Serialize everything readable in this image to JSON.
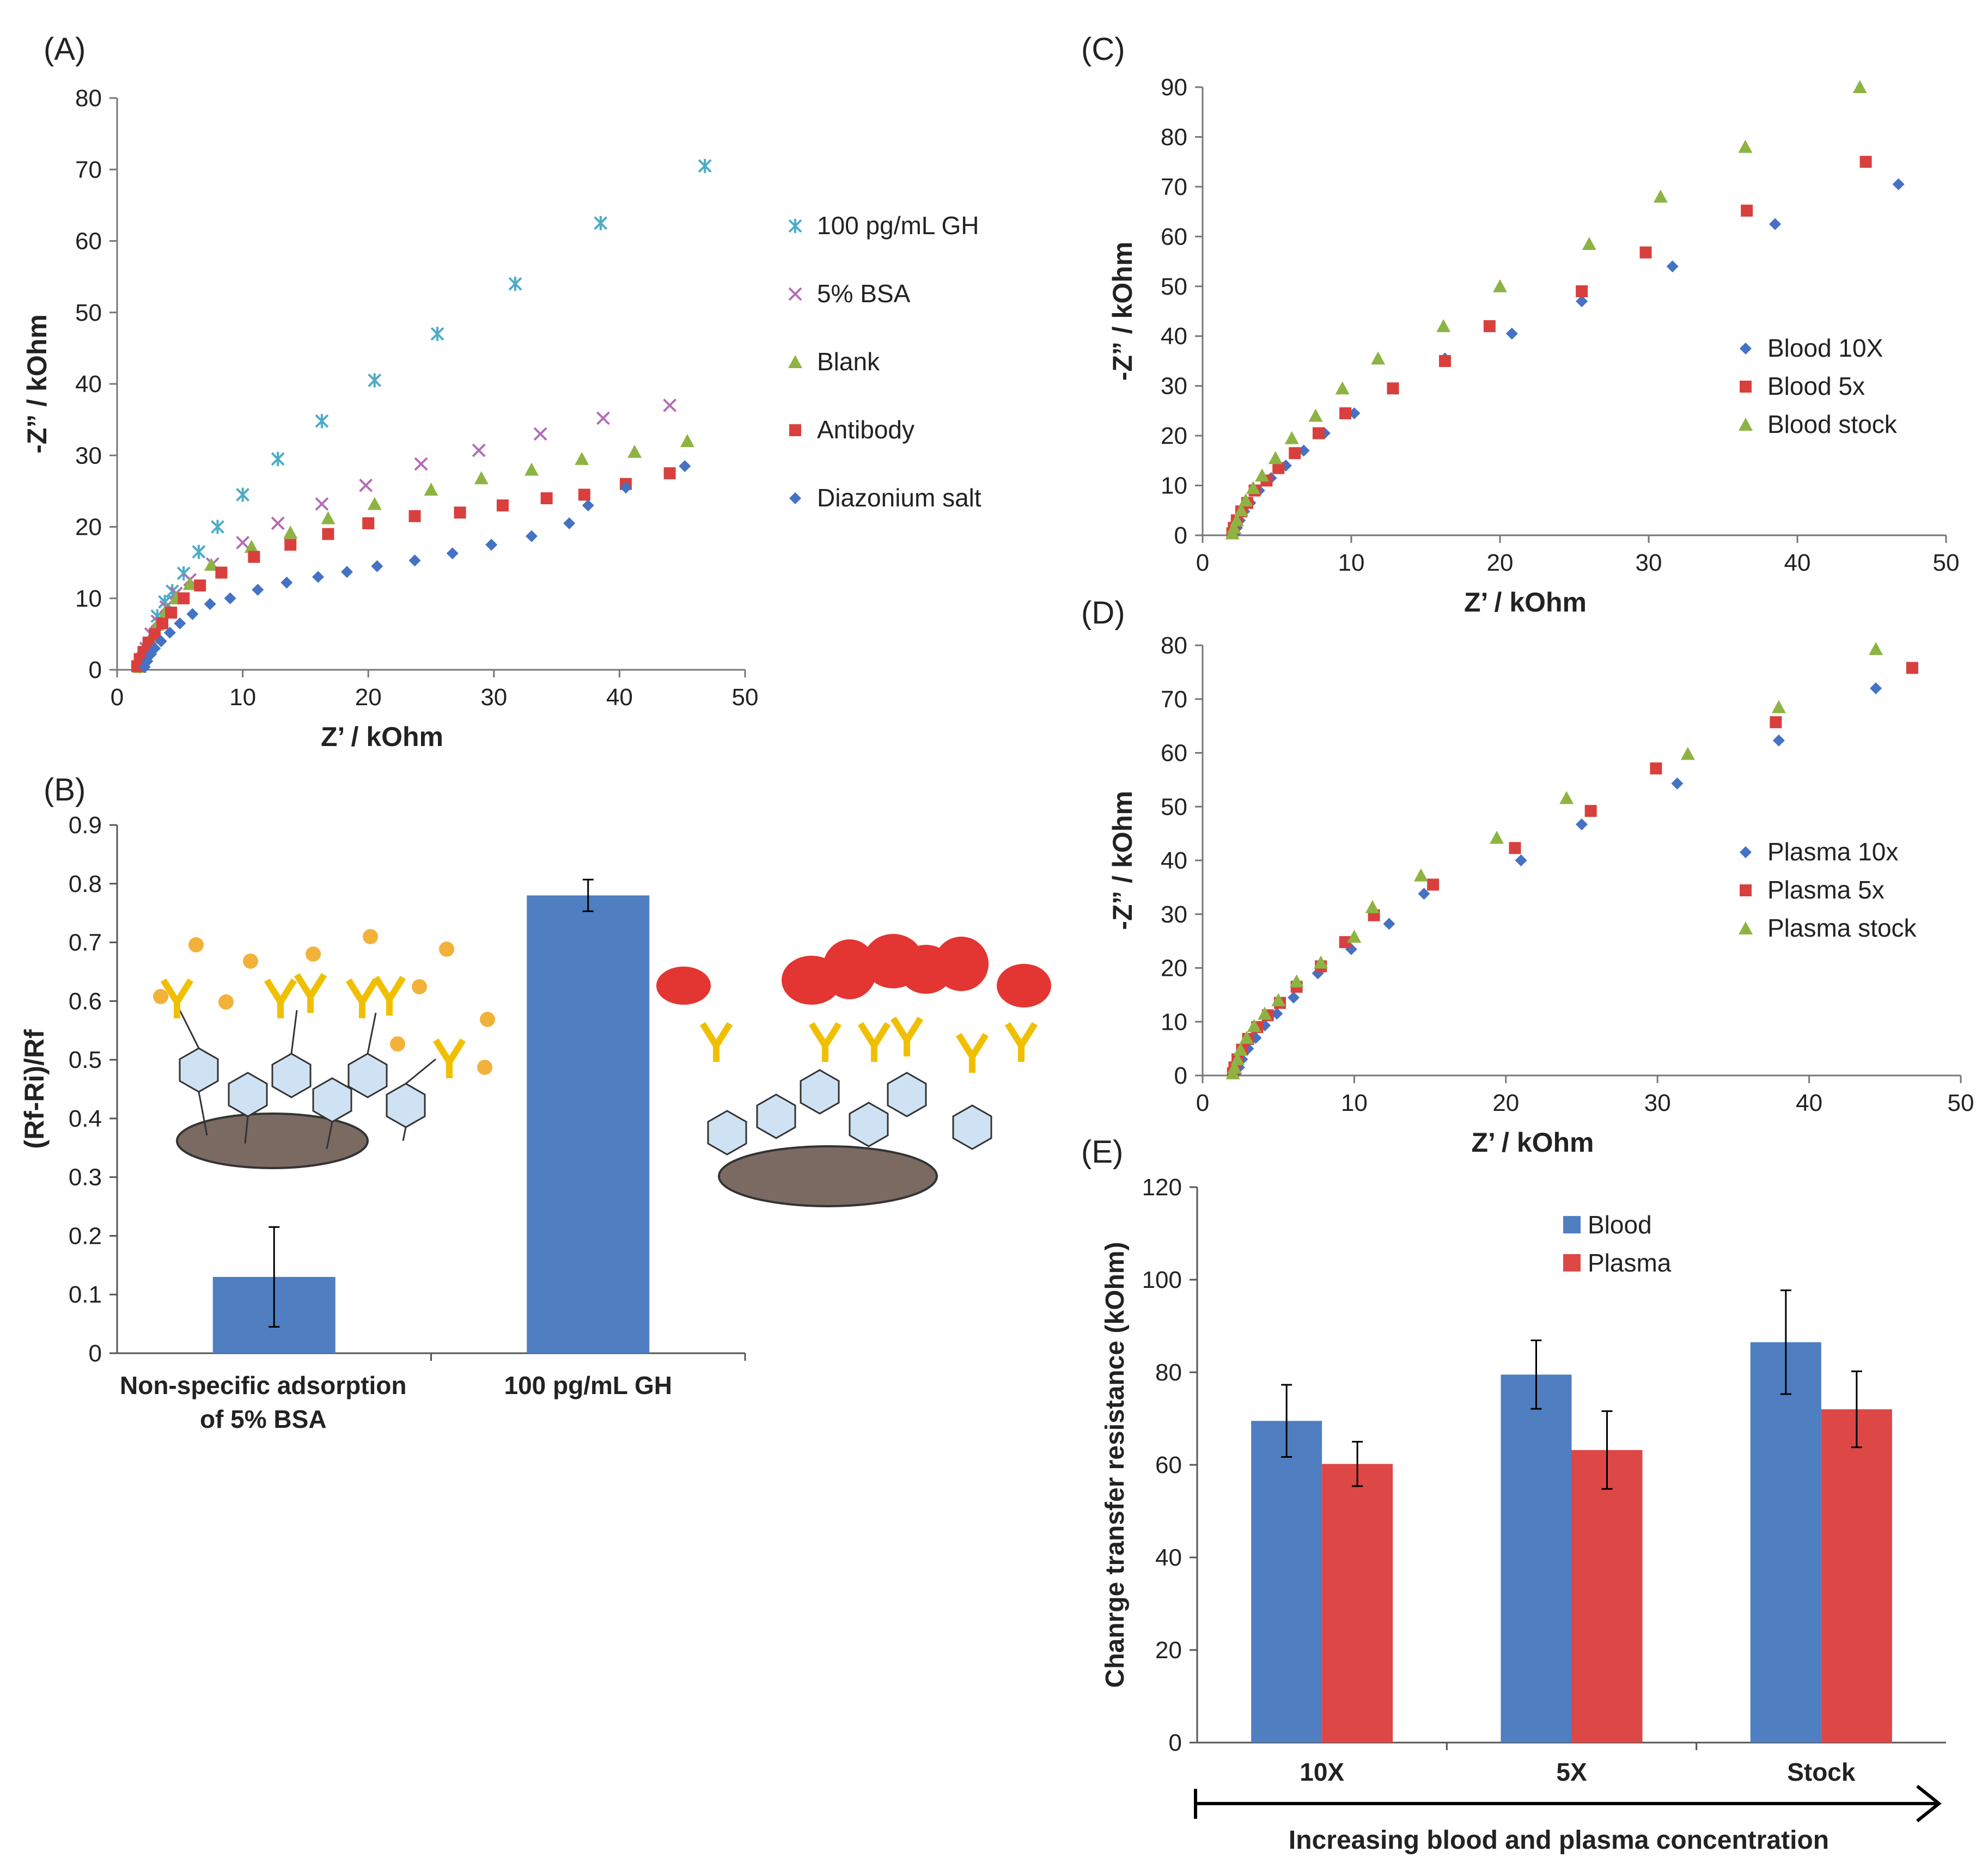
{
  "chart_data": [
    {
      "id": "A",
      "panel_label": "(A)",
      "type": "scatter",
      "xlabel": "Z’ / kOhm",
      "ylabel": "-Z” / kOhm",
      "xlim": [
        0,
        50
      ],
      "ylim": [
        0,
        80
      ],
      "xticks": [
        0,
        10,
        20,
        30,
        40,
        50
      ],
      "yticks": [
        0,
        10,
        20,
        30,
        40,
        50,
        60,
        70,
        80
      ],
      "legend_position": "right",
      "series": [
        {
          "name": "100 pg/mL GH",
          "marker": "asterisk",
          "color": "#4bacc6",
          "points": [
            [
              1.8,
              0.5
            ],
            [
              2,
              1.5
            ],
            [
              2.3,
              3
            ],
            [
              2.7,
              5
            ],
            [
              3.2,
              7.5
            ],
            [
              3.8,
              9.5
            ],
            [
              4.4,
              11
            ],
            [
              5.3,
              13.5
            ],
            [
              6.5,
              16.5
            ],
            [
              8,
              20
            ],
            [
              10,
              24.5
            ],
            [
              12.8,
              29.5
            ],
            [
              16.3,
              34.8
            ],
            [
              20.5,
              40.5
            ],
            [
              25.5,
              47
            ],
            [
              31.7,
              54
            ],
            [
              38.5,
              62.5
            ],
            [
              46.8,
              70.5
            ]
          ]
        },
        {
          "name": "5% BSA",
          "marker": "cross",
          "color": "#b36cb6",
          "points": [
            [
              1.8,
              0.5
            ],
            [
              2,
              1.5
            ],
            [
              2.3,
              3
            ],
            [
              2.7,
              5
            ],
            [
              3.2,
              6.8
            ],
            [
              3.9,
              8.8
            ],
            [
              4.7,
              10.7
            ],
            [
              5.8,
              12.6
            ],
            [
              7.6,
              14.8
            ],
            [
              10,
              17.8
            ],
            [
              12.8,
              20.5
            ],
            [
              16.3,
              23.2
            ],
            [
              19.8,
              25.8
            ],
            [
              24.2,
              28.8
            ],
            [
              28.8,
              30.7
            ],
            [
              33.7,
              33
            ],
            [
              38.7,
              35.2
            ],
            [
              44,
              37
            ]
          ]
        },
        {
          "name": "Blank",
          "marker": "triangle",
          "color": "#8db442",
          "points": [
            [
              1.8,
              0.4
            ],
            [
              2,
              1.4
            ],
            [
              2.3,
              2.8
            ],
            [
              2.7,
              4.5
            ],
            [
              3.2,
              6.3
            ],
            [
              3.9,
              8.2
            ],
            [
              4.7,
              10
            ],
            [
              5.8,
              12
            ],
            [
              7.5,
              14.7
            ],
            [
              10.7,
              17.2
            ],
            [
              13.8,
              19.2
            ],
            [
              16.8,
              21.2
            ],
            [
              20.5,
              23.2
            ],
            [
              25,
              25.2
            ],
            [
              29,
              26.8
            ],
            [
              33,
              28
            ],
            [
              37,
              29.5
            ],
            [
              41.2,
              30.5
            ],
            [
              45.4,
              32
            ]
          ]
        },
        {
          "name": "Antibody",
          "marker": "square",
          "color": "#d9403d",
          "points": [
            [
              1.6,
              0.5
            ],
            [
              1.8,
              1.5
            ],
            [
              2.1,
              2.5
            ],
            [
              2.5,
              3.8
            ],
            [
              3,
              5
            ],
            [
              3.6,
              6.5
            ],
            [
              4.3,
              8
            ],
            [
              5.3,
              10
            ],
            [
              6.6,
              11.8
            ],
            [
              8.3,
              13.6
            ],
            [
              10.9,
              15.8
            ],
            [
              13.8,
              17.5
            ],
            [
              16.8,
              19
            ],
            [
              20,
              20.5
            ],
            [
              23.7,
              21.5
            ],
            [
              27.3,
              22
            ],
            [
              30.7,
              23
            ],
            [
              34.2,
              24
            ],
            [
              37.2,
              24.5
            ],
            [
              40.5,
              26
            ],
            [
              44,
              27.5
            ]
          ]
        },
        {
          "name": "Diazonium salt",
          "marker": "diamond",
          "color": "#4472c4",
          "points": [
            [
              2.2,
              0.4
            ],
            [
              2.4,
              1.2
            ],
            [
              2.7,
              2.2
            ],
            [
              3,
              3
            ],
            [
              3.5,
              4
            ],
            [
              4.2,
              5.2
            ],
            [
              5,
              6.5
            ],
            [
              6,
              7.8
            ],
            [
              7.4,
              9.2
            ],
            [
              9,
              10
            ],
            [
              11.2,
              11.2
            ],
            [
              13.5,
              12.2
            ],
            [
              16,
              13
            ],
            [
              18.3,
              13.7
            ],
            [
              20.7,
              14.5
            ],
            [
              23.7,
              15.3
            ],
            [
              26.7,
              16.3
            ],
            [
              29.8,
              17.5
            ],
            [
              33,
              18.7
            ],
            [
              36,
              20.5
            ],
            [
              37.5,
              23
            ],
            [
              40.5,
              25.5
            ],
            [
              45.2,
              28.5
            ]
          ]
        }
      ]
    },
    {
      "id": "B",
      "panel_label": "(B)",
      "type": "bar",
      "ylabel": "(Rf-Ri)/Rf",
      "ylim": [
        0,
        0.9
      ],
      "yticks": [
        "0",
        "0.1",
        "0.2",
        "0.3",
        "0.4",
        "0.5",
        "0.6",
        "0.7",
        "0.8",
        "0.9"
      ],
      "categories": [
        [
          "Non-specific adsorption",
          "of 5% BSA"
        ],
        [
          "100 pg/mL GH"
        ]
      ],
      "values": [
        0.13,
        0.78
      ],
      "errors": [
        0.085,
        0.027
      ],
      "color": "#4f7ec1"
    },
    {
      "id": "C",
      "panel_label": "(C)",
      "type": "scatter",
      "xlabel": "Z’ / kOhm",
      "ylabel": "-Z” / kOhm",
      "xlim": [
        0,
        50
      ],
      "ylim": [
        0,
        90
      ],
      "xticks": [
        0,
        10,
        20,
        30,
        40,
        50
      ],
      "yticks": [
        0,
        10,
        20,
        30,
        40,
        50,
        60,
        70,
        80,
        90
      ],
      "legend_position": "right",
      "series": [
        {
          "name": "Blood 10X",
          "marker": "diamond",
          "color": "#4472c4",
          "points": [
            [
              2.2,
              0.4
            ],
            [
              2.3,
              1.5
            ],
            [
              2.5,
              3
            ],
            [
              2.8,
              4.8
            ],
            [
              3.2,
              6.5
            ],
            [
              3.8,
              9
            ],
            [
              4.6,
              11.5
            ],
            [
              5.6,
              14
            ],
            [
              6.8,
              17
            ],
            [
              8.2,
              20.5
            ],
            [
              10.2,
              24.5
            ],
            [
              12.8,
              29.5
            ],
            [
              16.3,
              35.5
            ],
            [
              20.8,
              40.5
            ],
            [
              25.5,
              47
            ],
            [
              31.6,
              54
            ],
            [
              38.5,
              62.5
            ],
            [
              46.8,
              70.5
            ]
          ]
        },
        {
          "name": "Blood 5x",
          "marker": "square",
          "color": "#d9403d",
          "points": [
            [
              2,
              0.4
            ],
            [
              2.1,
              1.5
            ],
            [
              2.3,
              3
            ],
            [
              2.6,
              4.8
            ],
            [
              3,
              6.5
            ],
            [
              3.5,
              9
            ],
            [
              4.3,
              11
            ],
            [
              5.1,
              13.5
            ],
            [
              6.2,
              16.5
            ],
            [
              7.8,
              20.5
            ],
            [
              9.6,
              24.5
            ],
            [
              12.8,
              29.5
            ],
            [
              16.3,
              35
            ],
            [
              19.3,
              42
            ],
            [
              25.5,
              49
            ],
            [
              29.8,
              56.8
            ],
            [
              36.6,
              65.2
            ],
            [
              44.6,
              75
            ]
          ]
        },
        {
          "name": "Blood stock",
          "marker": "triangle",
          "color": "#8db442",
          "points": [
            [
              2,
              0.4
            ],
            [
              2.1,
              1.5
            ],
            [
              2.3,
              3
            ],
            [
              2.6,
              5
            ],
            [
              2.9,
              7
            ],
            [
              3.4,
              9.5
            ],
            [
              4,
              12
            ],
            [
              4.9,
              15.5
            ],
            [
              6,
              19.5
            ],
            [
              7.6,
              24
            ],
            [
              9.4,
              29.5
            ],
            [
              11.8,
              35.5
            ],
            [
              16.2,
              42
            ],
            [
              20,
              50
            ],
            [
              26,
              58.5
            ],
            [
              30.8,
              68
            ],
            [
              36.5,
              78
            ],
            [
              44.2,
              90
            ]
          ]
        }
      ]
    },
    {
      "id": "D",
      "panel_label": "(D)",
      "type": "scatter",
      "xlabel": "Z’ / kOhm",
      "ylabel": "-Z” / kOhm",
      "xlim": [
        0,
        50
      ],
      "ylim": [
        0,
        80
      ],
      "xticks": [
        0,
        10,
        20,
        30,
        40,
        50
      ],
      "yticks": [
        0,
        10,
        20,
        30,
        40,
        50,
        60,
        70,
        80
      ],
      "legend_position": "right",
      "series": [
        {
          "name": "Plasma 10x",
          "marker": "diamond",
          "color": "#4472c4",
          "points": [
            [
              2.2,
              0.4
            ],
            [
              2.4,
              1.5
            ],
            [
              2.6,
              3
            ],
            [
              3,
              5
            ],
            [
              3.5,
              7
            ],
            [
              4.1,
              9.3
            ],
            [
              4.9,
              11.5
            ],
            [
              6,
              14.5
            ],
            [
              7.6,
              19
            ],
            [
              9.8,
              23.5
            ],
            [
              12.3,
              28.2
            ],
            [
              14.6,
              33.8
            ],
            [
              21,
              40
            ],
            [
              25,
              46.7
            ],
            [
              31.3,
              54.3
            ],
            [
              38,
              62.3
            ],
            [
              44.4,
              72
            ]
          ]
        },
        {
          "name": "Plasma 5x",
          "marker": "square",
          "color": "#d9403d",
          "points": [
            [
              2,
              0.4
            ],
            [
              2.1,
              1.5
            ],
            [
              2.3,
              3
            ],
            [
              2.6,
              4.8
            ],
            [
              3,
              6.8
            ],
            [
              3.6,
              9
            ],
            [
              4.3,
              11.2
            ],
            [
              5.1,
              13.5
            ],
            [
              6.2,
              16.5
            ],
            [
              7.8,
              20.3
            ],
            [
              9.4,
              24.8
            ],
            [
              11.3,
              29.8
            ],
            [
              15.2,
              35.5
            ],
            [
              20.6,
              42.3
            ],
            [
              25.6,
              49.2
            ],
            [
              29.9,
              57.1
            ],
            [
              37.8,
              65.7
            ],
            [
              46.8,
              75.8
            ]
          ]
        },
        {
          "name": "Plasma stock",
          "marker": "triangle",
          "color": "#8db442",
          "points": [
            [
              2,
              0.4
            ],
            [
              2.1,
              1.5
            ],
            [
              2.3,
              3
            ],
            [
              2.5,
              4.8
            ],
            [
              2.9,
              7
            ],
            [
              3.4,
              9.2
            ],
            [
              4.1,
              11.5
            ],
            [
              5,
              14
            ],
            [
              6.2,
              17.5
            ],
            [
              7.8,
              21
            ],
            [
              10,
              25.8
            ],
            [
              11.2,
              31.3
            ],
            [
              14.4,
              37.2
            ],
            [
              19.4,
              44.2
            ],
            [
              24,
              51.6
            ],
            [
              32,
              59.8
            ],
            [
              38,
              68.5
            ],
            [
              44.4,
              79.3
            ]
          ]
        }
      ]
    },
    {
      "id": "E",
      "panel_label": "(E)",
      "type": "bar",
      "ylabel": "Chanrge transfer resistance (kOhm)",
      "ylim": [
        0,
        120
      ],
      "yticks": [
        0,
        20,
        40,
        60,
        80,
        100,
        120
      ],
      "categories": [
        "10X",
        "5X",
        "Stock"
      ],
      "series": [
        {
          "name": "Blood",
          "color": "#4f7ec1",
          "values": [
            69.5,
            79.5,
            86.5
          ],
          "errors": [
            7.8,
            7.4,
            11.2
          ]
        },
        {
          "name": "Plasma",
          "color": "#dd4746",
          "values": [
            60.2,
            63.2,
            72
          ],
          "errors": [
            4.8,
            8.4,
            8.2
          ]
        }
      ],
      "legend_position": "top-center",
      "arrow_label": "Increasing blood and plasma concentration"
    }
  ]
}
